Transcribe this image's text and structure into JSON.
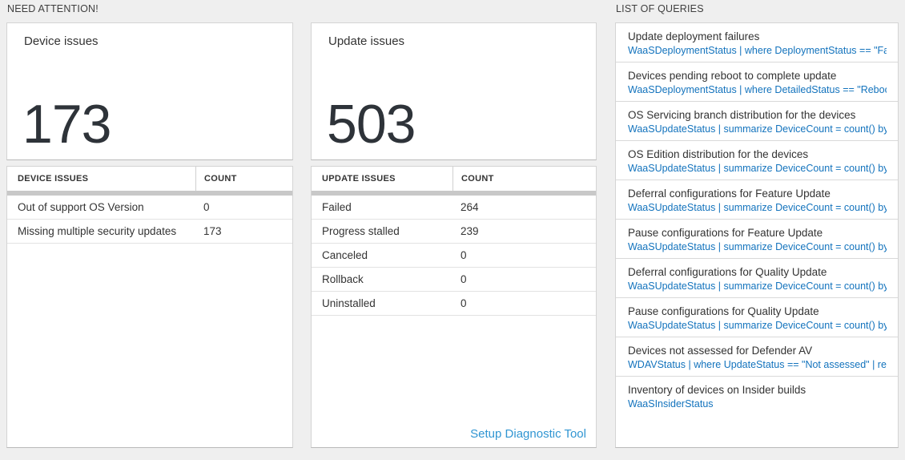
{
  "sections": {
    "need_attention": {
      "label": "NEED ATTENTION!"
    },
    "queries": {
      "label": "LIST OF QUERIES"
    }
  },
  "device_card": {
    "title": "Device issues",
    "count": "173",
    "table": {
      "headers": [
        "DEVICE ISSUES",
        "COUNT"
      ],
      "rows": [
        {
          "label": "Out of support OS Version",
          "count": "0"
        },
        {
          "label": "Missing multiple security updates",
          "count": "173"
        }
      ]
    }
  },
  "update_card": {
    "title": "Update issues",
    "count": "503",
    "table": {
      "headers": [
        "UPDATE ISSUES",
        "COUNT"
      ],
      "rows": [
        {
          "label": "Failed",
          "count": "264"
        },
        {
          "label": "Progress stalled",
          "count": "239"
        },
        {
          "label": "Canceled",
          "count": "0"
        },
        {
          "label": "Rollback",
          "count": "0"
        },
        {
          "label": "Uninstalled",
          "count": "0"
        }
      ]
    },
    "link": "Setup Diagnostic Tool"
  },
  "query_list": {
    "items": [
      {
        "title": "Update deployment failures",
        "query": "WaaSDeploymentStatus | where DeploymentStatus == \"Failed\" |..."
      },
      {
        "title": "Devices pending reboot to complete update",
        "query": "WaaSDeploymentStatus | where DetailedStatus == \"Reboot pend..."
      },
      {
        "title": "OS Servicing branch distribution for the devices",
        "query": "WaaSUpdateStatus | summarize DeviceCount = count() by OSSer..."
      },
      {
        "title": "OS Edition distribution for the devices",
        "query": "WaaSUpdateStatus | summarize DeviceCount = count() by OSEdit..."
      },
      {
        "title": "Deferral configurations for Feature Update",
        "query": "WaaSUpdateStatus | summarize DeviceCount = count() by Featur..."
      },
      {
        "title": "Pause configurations for Feature Update",
        "query": "WaaSUpdateStatus | summarize DeviceCount = count() by Featur..."
      },
      {
        "title": "Deferral configurations for Quality Update",
        "query": "WaaSUpdateStatus | summarize DeviceCount = count() by Qualit..."
      },
      {
        "title": "Pause configurations for Quality Update",
        "query": "WaaSUpdateStatus | summarize DeviceCount = count() by Qualit..."
      },
      {
        "title": "Devices not assessed for Defender AV",
        "query": "WDAVStatus | where UpdateStatus == \"Not assessed\" | render ta..."
      },
      {
        "title": "Inventory of devices on Insider builds",
        "query": "WaaSInsiderStatus"
      }
    ]
  },
  "colors": {
    "query_blue": "#1373bd",
    "link_blue": "#3095d2",
    "header_bar_gray": "#c8c8c8",
    "page_background": "#efefef"
  }
}
